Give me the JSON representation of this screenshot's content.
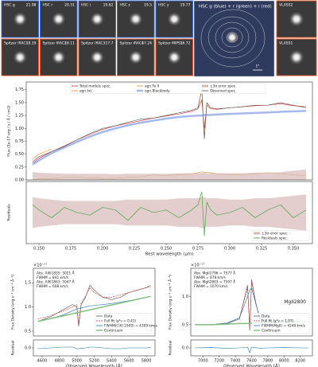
{
  "cutouts": {
    "hsc": [
      {
        "band": "HSC g",
        "mag": "21.98"
      },
      {
        "band": "HSC r",
        "mag": "20.31"
      },
      {
        "band": "HSC i",
        "mag": "19.82"
      },
      {
        "band": "HSC z",
        "mag": "19.5"
      },
      {
        "band": "HSC y",
        "mag": "19.77"
      }
    ],
    "spitzer": [
      {
        "band": "Spitzer IRAC1",
        "mag": "18.39"
      },
      {
        "band": "Spitzer IRAC2",
        "mag": "18.11"
      },
      {
        "band": "Spitzer IRAC3",
        "mag": "17.7"
      },
      {
        "band": "Spitzer IRAC4",
        "mag": "17.24"
      },
      {
        "band": "Spitzer MIPS1",
        "mag": "16.72"
      }
    ],
    "composite": "HSC g (blue) + r (green) + i (red)",
    "scale": "1\"",
    "vlass": [
      "VLASS2",
      "VLASS1"
    ]
  },
  "chart_data": [
    {
      "type": "line",
      "ylabel": "Flux (1e-17 erg / s / Å / cm2)",
      "x": [
        0.145,
        0.15,
        0.16,
        0.17,
        0.18,
        0.19,
        0.2,
        0.21,
        0.22,
        0.23,
        0.24,
        0.25,
        0.26,
        0.27,
        0.275,
        0.278,
        0.28,
        0.282,
        0.285,
        0.29,
        0.3,
        0.31,
        0.32,
        0.33,
        0.34,
        0.35,
        0.36
      ],
      "xlim": [
        0.14,
        0.365
      ],
      "ylim": [
        0,
        1.9
      ],
      "yticks": [
        {
          "value": 0,
          "label": "0.00"
        },
        0.25,
        {
          "value": 0.5,
          "label": "0.50"
        },
        0.75,
        {
          "value": 1,
          "label": "1.00"
        },
        1.25,
        {
          "value": 1.5,
          "label": "1.50"
        },
        1.75
      ],
      "legend": "upper center",
      "series": [
        {
          "name": "Total models spec.",
          "color": "#d62728",
          "values": [
            0.32,
            0.42,
            0.55,
            0.66,
            0.78,
            0.88,
            0.98,
            1.05,
            1.1,
            1.15,
            1.2,
            1.24,
            1.28,
            1.33,
            1.38,
            1.55,
            1.0,
            1.45,
            1.38,
            1.37,
            1.4,
            1.42,
            1.44,
            1.45,
            1.48,
            1.44,
            1.42
          ]
        },
        {
          "name": "agn.txt",
          "color": "#ff7f0e",
          "values": [
            0.4,
            0.5,
            0.6,
            null,
            null,
            null,
            null,
            null,
            null,
            null,
            null,
            null,
            null,
            null,
            1.4,
            1.75,
            0.8,
            1.5,
            1.4,
            null,
            null,
            null,
            null,
            null,
            null,
            null,
            null
          ]
        },
        {
          "name": "agn.Fe II",
          "color": "#c8961e",
          "values": [
            0.0,
            0.02,
            0.03,
            0.05,
            0.05,
            0.04,
            0.03,
            0.03,
            0.05,
            0.06,
            0.1,
            0.08,
            0.1,
            0.12,
            0.14,
            0.16,
            0.15,
            0.15,
            0.14,
            0.12,
            0.1,
            0.1,
            0.12,
            0.14,
            0.12,
            0.1,
            0.08
          ]
        },
        {
          "name": "agn.Blackbody",
          "color": "#a4b8ec",
          "width": 2.5,
          "values": [
            0.3,
            0.38,
            0.52,
            0.63,
            0.74,
            0.84,
            0.93,
            1.0,
            1.06,
            1.11,
            1.15,
            1.19,
            1.22,
            1.24,
            1.25,
            1.25,
            1.26,
            1.26,
            1.26,
            1.27,
            1.28,
            1.29,
            1.3,
            1.31,
            1.32,
            1.33,
            1.34
          ]
        },
        {
          "name": "±3σ error spec.",
          "color": "#d9b8b8",
          "area": true,
          "values": [
            0.15,
            0.14,
            0.13,
            0.12,
            0.12,
            0.12,
            0.12,
            0.11,
            0.12,
            0.12,
            0.12,
            0.12,
            0.13,
            0.13,
            0.13,
            0.14,
            0.14,
            0.13,
            0.13,
            0.13,
            0.13,
            0.13,
            0.14,
            0.14,
            0.15,
            0.18,
            0.2
          ]
        },
        {
          "name": "Observed spec.",
          "color": "#555555",
          "values": [
            0.35,
            0.45,
            0.55,
            0.65,
            0.78,
            0.9,
            1.0,
            1.05,
            1.12,
            1.18,
            1.2,
            1.25,
            1.3,
            1.35,
            1.4,
            1.75,
            0.8,
            1.5,
            1.4,
            1.38,
            1.4,
            1.42,
            1.45,
            1.45,
            1.5,
            1.45,
            1.4
          ]
        }
      ]
    },
    {
      "type": "line",
      "ylabel": "Residuals",
      "xlabel": "Rest wavelength (µm)",
      "x": [
        0.145,
        0.15,
        0.16,
        0.17,
        0.18,
        0.19,
        0.2,
        0.21,
        0.22,
        0.23,
        0.24,
        0.25,
        0.26,
        0.27,
        0.275,
        0.278,
        0.28,
        0.282,
        0.285,
        0.29,
        0.3,
        0.31,
        0.32,
        0.33,
        0.34,
        0.35,
        0.36
      ],
      "xlim": [
        0.14,
        0.365
      ],
      "ylim": [
        -1.2,
        1.2
      ],
      "xticks": [
        {
          "value": 0.15,
          "label": "0.150"
        },
        0.175,
        {
          "value": 0.2,
          "label": "0.200"
        },
        0.225,
        {
          "value": 0.25,
          "label": "0.250"
        },
        0.275,
        {
          "value": 0.3,
          "label": "0.300"
        },
        0.325,
        {
          "value": 0.35,
          "label": "0.350"
        }
      ],
      "legend": "lower right",
      "series": [
        {
          "name": "±3σ error spec.",
          "color": "#d9b8b8",
          "area": true,
          "symmetric": true,
          "values": [
            0.6,
            0.55,
            0.5,
            0.45,
            0.45,
            0.45,
            0.45,
            0.45,
            0.5,
            0.5,
            0.5,
            0.5,
            0.55,
            0.55,
            0.55,
            0.6,
            0.6,
            0.55,
            0.55,
            0.55,
            0.5,
            0.5,
            0.55,
            0.55,
            0.6,
            0.65,
            0.7
          ]
        },
        {
          "name": "Residuals spec.",
          "color": "#2ca02c",
          "values": [
            0.3,
            0.1,
            -0.2,
            0.2,
            0.0,
            -0.1,
            0.2,
            0.1,
            -0.3,
            0.2,
            0.0,
            0.1,
            -0.2,
            0.1,
            0.3,
            0.8,
            -0.9,
            0.4,
            0.1,
            -0.1,
            0.0,
            0.2,
            -0.2,
            0.1,
            0.3,
            -0.2,
            0.1
          ]
        }
      ]
    },
    {
      "type": "line",
      "ylabel": "Flux Density (erg s⁻¹ cm⁻² Å⁻¹)",
      "offset": "×10⁻¹⁷",
      "x": [
        4550,
        4700,
        4850,
        4950,
        5000,
        5021,
        5050,
        5100,
        5150,
        5200,
        5300,
        5400,
        5500,
        5600,
        5700,
        5800,
        5850
      ],
      "xlim": [
        4500,
        5900
      ],
      "ylim": [
        0.4,
        1.8
      ],
      "yticks": [
        0.5,
        {
          "value": 1,
          "label": "1.0"
        },
        1.5
      ],
      "legend": "lower right",
      "annotations": [
        "Abs. AlIII1855: 5021 Å",
        "FWHM = 841 km/s",
        "Abs. AlIII1863: 5047 Å",
        "FWHM = 608 km/s"
      ],
      "series": [
        {
          "name": "Data",
          "color": "#555555",
          "values": [
            0.7,
            0.8,
            0.95,
            1.05,
            1.0,
            0.6,
            1.05,
            1.2,
            1.45,
            1.35,
            1.2,
            1.15,
            1.2,
            1.3,
            1.35,
            1.4,
            1.45
          ]
        },
        {
          "name": "Full fit (χ²ν = 0.41)",
          "color": "#d62728",
          "dash": true,
          "values": [
            0.75,
            0.82,
            0.92,
            1.0,
            1.05,
            0.65,
            1.08,
            1.22,
            1.4,
            1.3,
            1.2,
            1.2,
            1.25,
            1.3,
            1.35,
            1.4,
            1.42
          ]
        },
        {
          "name": "FWHM(CIII] 1909) = 4309 km/s",
          "color": "#1f77b4",
          "values": [
            0.7,
            0.76,
            0.84,
            0.92,
            0.96,
            0.97,
            0.98,
            1.0,
            1.02,
            1.03,
            1.05,
            1.07,
            1.1,
            1.13,
            1.16,
            1.2,
            1.22
          ]
        },
        {
          "name": "Continuum",
          "color": "#7fbf7f",
          "width": 1.5,
          "values": [
            0.7,
            0.76,
            0.82,
            0.86,
            0.88,
            0.89,
            0.9,
            0.92,
            0.94,
            0.96,
            1.0,
            1.04,
            1.08,
            1.12,
            1.16,
            1.2,
            1.22
          ]
        }
      ]
    },
    {
      "type": "line",
      "ylabel": "Residual",
      "xlabel": "Observed Wavelength [Å]",
      "x": [
        4550,
        4700,
        4850,
        4950,
        5000,
        5021,
        5050,
        5100,
        5150,
        5200,
        5300,
        5400,
        5500,
        5600,
        5700,
        5800,
        5850
      ],
      "xlim": [
        4500,
        5900
      ],
      "ylim": [
        -0.5,
        0.5
      ],
      "xticks": [
        4600,
        4800,
        5000,
        5200,
        5400,
        5600,
        5800
      ],
      "yticks": [
        {
          "value": 0,
          "label": "0.0"
        }
      ],
      "series": [
        {
          "name": "Residual",
          "color": "#1f77b4",
          "values": [
            -0.05,
            0.0,
            0.05,
            0.05,
            -0.05,
            -0.05,
            -0.03,
            0.0,
            0.05,
            0.05,
            0.0,
            -0.05,
            -0.05,
            0.0,
            0.0,
            0.0,
            0.03
          ]
        }
      ]
    },
    {
      "type": "line",
      "ylabel": "Flux Density (erg s⁻¹ cm⁻² Å⁻¹)",
      "offset": "×10⁻¹⁷",
      "line_name": "MgII2800",
      "x": [
        6900,
        7100,
        7300,
        7450,
        7550,
        7577,
        7600,
        7650,
        7700,
        7800,
        8000,
        8200,
        8300
      ],
      "xlim": [
        6850,
        8350
      ],
      "ylim": [
        0.3,
        1.5
      ],
      "yticks": [
        0.5,
        {
          "value": 1,
          "label": "1.0"
        }
      ],
      "legend": "lower right",
      "annotations": [
        "Abs. MgII2796 = 7577 Å",
        "FWHM = 878 km/s",
        "Abs. MgII2803 = 7597 Å",
        "FWHM = 1070 km/s"
      ],
      "series": [
        {
          "name": "Data",
          "color": "#555555",
          "values": [
            0.5,
            0.5,
            0.52,
            0.6,
            1.2,
            0.4,
            1.3,
            0.9,
            0.6,
            0.55,
            0.55,
            0.56,
            0.55
          ]
        },
        {
          "name": "Full fit (χ²ν = 1.07)",
          "color": "#d62728",
          "dash": true,
          "values": [
            0.5,
            0.5,
            0.53,
            0.62,
            1.15,
            0.45,
            1.25,
            0.88,
            0.62,
            0.56,
            0.55,
            0.55,
            0.55
          ]
        },
        {
          "name": "FWHM(MgII) = 4240 km/s",
          "color": "#1f77b4",
          "values": [
            0.5,
            0.5,
            0.53,
            0.62,
            1.0,
            1.12,
            1.15,
            0.88,
            0.62,
            0.56,
            0.55,
            0.55,
            0.55
          ]
        },
        {
          "name": "Continuum",
          "color": "#7fbf7f",
          "width": 1.5,
          "values": [
            0.5,
            0.5,
            0.51,
            0.52,
            0.52,
            0.52,
            0.53,
            0.53,
            0.53,
            0.54,
            0.54,
            0.55,
            0.55
          ]
        }
      ]
    },
    {
      "type": "line",
      "ylabel": "Residual",
      "xlabel": "Observed Wavelength [Å]",
      "x": [
        6900,
        7100,
        7300,
        7450,
        7550,
        7577,
        7600,
        7650,
        7700,
        7800,
        8000,
        8200,
        8300
      ],
      "xlim": [
        6850,
        8350
      ],
      "ylim": [
        -0.5,
        0.5
      ],
      "xticks": [
        7000,
        7200,
        7400,
        7600,
        7800,
        8000,
        8200
      ],
      "yticks": [
        {
          "value": 0,
          "label": "0.0"
        }
      ],
      "series": [
        {
          "name": "Residual",
          "color": "#1f77b4",
          "values": [
            0.0,
            0.02,
            -0.02,
            0.0,
            0.05,
            -0.3,
            0.05,
            0.02,
            -0.02,
            0.0,
            0.02,
            0.0,
            0.0
          ]
        }
      ]
    }
  ]
}
